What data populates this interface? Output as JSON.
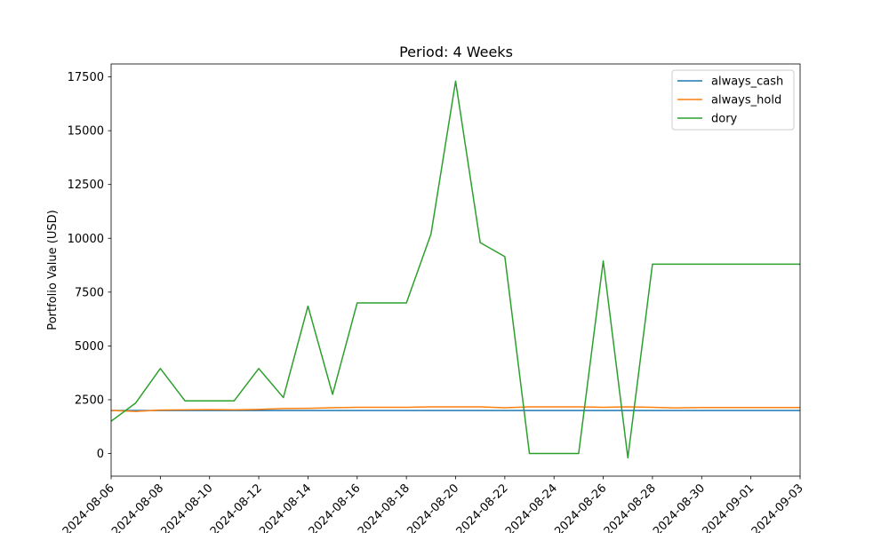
{
  "chart_data": {
    "type": "line",
    "title": "Period: 4 Weeks",
    "xlabel": "",
    "ylabel": "Portfolio Value (USD)",
    "x": [
      "2024-08-06",
      "2024-08-07",
      "2024-08-08",
      "2024-08-09",
      "2024-08-10",
      "2024-08-11",
      "2024-08-12",
      "2024-08-13",
      "2024-08-14",
      "2024-08-15",
      "2024-08-16",
      "2024-08-17",
      "2024-08-18",
      "2024-08-19",
      "2024-08-20",
      "2024-08-21",
      "2024-08-22",
      "2024-08-23",
      "2024-08-24",
      "2024-08-25",
      "2024-08-26",
      "2024-08-27",
      "2024-08-28",
      "2024-08-29",
      "2024-08-30",
      "2024-08-31",
      "2024-09-01",
      "2024-09-02",
      "2024-09-03"
    ],
    "xlim": [
      "2024-08-06",
      "2024-09-03"
    ],
    "x_ticks": [
      "2024-08-06",
      "2024-08-08",
      "2024-08-10",
      "2024-08-12",
      "2024-08-14",
      "2024-08-16",
      "2024-08-18",
      "2024-08-20",
      "2024-08-22",
      "2024-08-24",
      "2024-08-26",
      "2024-08-28",
      "2024-08-30",
      "2024-09-01",
      "2024-09-03"
    ],
    "ylim": [
      -1050,
      18100
    ],
    "y_ticks": [
      0,
      2500,
      5000,
      7500,
      10000,
      12500,
      15000,
      17500
    ],
    "grid": false,
    "legend_position": "top-right",
    "series": [
      {
        "name": "always_cash",
        "color": "#1f77b4",
        "values": [
          2000,
          2000,
          2000,
          2000,
          2000,
          2000,
          2000,
          2000,
          2000,
          2000,
          2000,
          2000,
          2000,
          2000,
          2000,
          2000,
          2000,
          2000,
          2000,
          2000,
          2000,
          2000,
          2000,
          2000,
          2000,
          2000,
          2000,
          2000,
          2000
        ]
      },
      {
        "name": "always_hold",
        "color": "#ff7f0e",
        "values": [
          2000,
          1960,
          2020,
          2030,
          2040,
          2030,
          2050,
          2090,
          2100,
          2130,
          2150,
          2150,
          2150,
          2170,
          2170,
          2170,
          2130,
          2170,
          2170,
          2170,
          2150,
          2170,
          2150,
          2120,
          2140,
          2140,
          2140,
          2140,
          2140
        ]
      },
      {
        "name": "dory",
        "color": "#2ca02c",
        "values": [
          1500,
          2350,
          3950,
          2450,
          2450,
          2450,
          3950,
          2600,
          6850,
          2750,
          7000,
          7000,
          7000,
          10200,
          17300,
          9800,
          9150,
          0,
          0,
          0,
          8950,
          -200,
          8800,
          8800,
          8800,
          8800,
          8800,
          8800,
          8800
        ]
      }
    ]
  }
}
